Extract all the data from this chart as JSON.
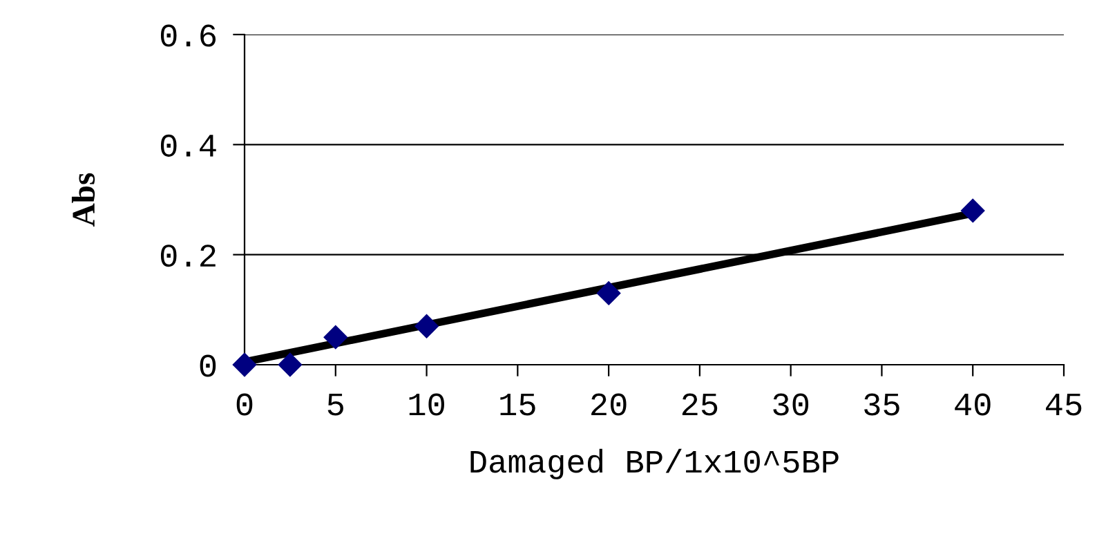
{
  "chart_data": {
    "type": "scatter",
    "xlabel": "Damaged BP/1x10^5BP",
    "ylabel": "Abs",
    "xlim": [
      0,
      45
    ],
    "xticks": [
      0,
      5,
      10,
      15,
      20,
      25,
      30,
      35,
      40,
      45
    ],
    "ylim": [
      0,
      0.6
    ],
    "yticks": [
      0,
      0.2,
      0.4,
      0.6
    ],
    "grid": "y",
    "series": [
      {
        "marker": "diamond",
        "color": "#000080",
        "x": [
          0,
          2.5,
          5,
          10,
          20,
          40
        ],
        "values": [
          0,
          0,
          0.05,
          0.07,
          0.13,
          0.28
        ]
      },
      {
        "type": "line",
        "color": "#000000",
        "x": [
          0,
          40
        ],
        "values": [
          0.005,
          0.275
        ]
      }
    ]
  }
}
